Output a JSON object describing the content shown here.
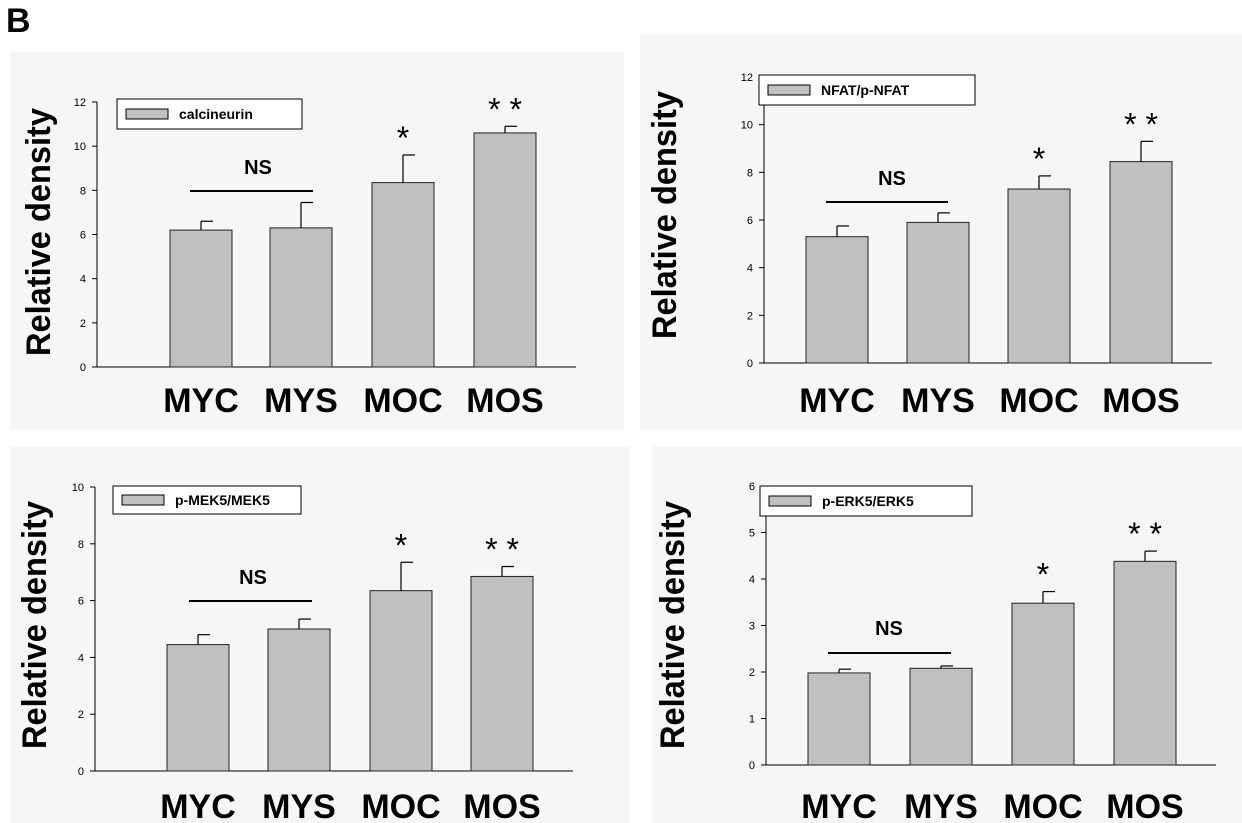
{
  "figure": {
    "panel_label": "B"
  },
  "chart_data": [
    {
      "type": "bar",
      "ylabel": "Relative density",
      "legend": "calcineurin",
      "categories": [
        "MYC",
        "MYS",
        "MOC",
        "MOS"
      ],
      "values": [
        6.2,
        6.3,
        8.35,
        10.6
      ],
      "errors": [
        0.4,
        1.15,
        1.25,
        0.3
      ],
      "significance": [
        "",
        "",
        "*",
        "* *"
      ],
      "bracket_label": "NS",
      "ylim": [
        0,
        12
      ],
      "yticks": [
        "0",
        "2",
        "4",
        "6",
        "8",
        "10",
        "12"
      ],
      "grid": false
    },
    {
      "type": "bar",
      "ylabel": "Relative density",
      "legend": "NFAT/p-NFAT",
      "categories": [
        "MYC",
        "MYS",
        "MOC",
        "MOS"
      ],
      "values": [
        5.3,
        5.9,
        7.3,
        8.45
      ],
      "errors": [
        0.45,
        0.4,
        0.55,
        0.85
      ],
      "significance": [
        "",
        "",
        "*",
        "* *"
      ],
      "bracket_label": "NS",
      "ylim": [
        0,
        12
      ],
      "yticks": [
        "0",
        "2",
        "4",
        "6",
        "8",
        "10",
        "12"
      ],
      "grid": false
    },
    {
      "type": "bar",
      "ylabel": "Relative density",
      "legend": "p-MEK5/MEK5",
      "categories": [
        "MYC",
        "MYS",
        "MOC",
        "MOS"
      ],
      "values": [
        4.45,
        5.0,
        6.35,
        6.85
      ],
      "errors": [
        0.35,
        0.35,
        1.0,
        0.35
      ],
      "significance": [
        "",
        "",
        "*",
        "* *"
      ],
      "bracket_label": "NS",
      "ylim": [
        0,
        10
      ],
      "yticks": [
        "0",
        "2",
        "4",
        "6",
        "8",
        "10"
      ],
      "grid": false
    },
    {
      "type": "bar",
      "ylabel": "Relative density",
      "legend": "p-ERK5/ERK5",
      "categories": [
        "MYC",
        "MYS",
        "MOC",
        "MOS"
      ],
      "values": [
        1.98,
        2.08,
        3.48,
        4.38
      ],
      "errors": [
        0.08,
        0.05,
        0.25,
        0.22
      ],
      "significance": [
        "",
        "",
        "*",
        "* *"
      ],
      "bracket_label": "NS",
      "ylim": [
        0,
        6
      ],
      "yticks": [
        "0",
        "1",
        "2",
        "3",
        "4",
        "5",
        "6"
      ],
      "grid": false
    }
  ]
}
